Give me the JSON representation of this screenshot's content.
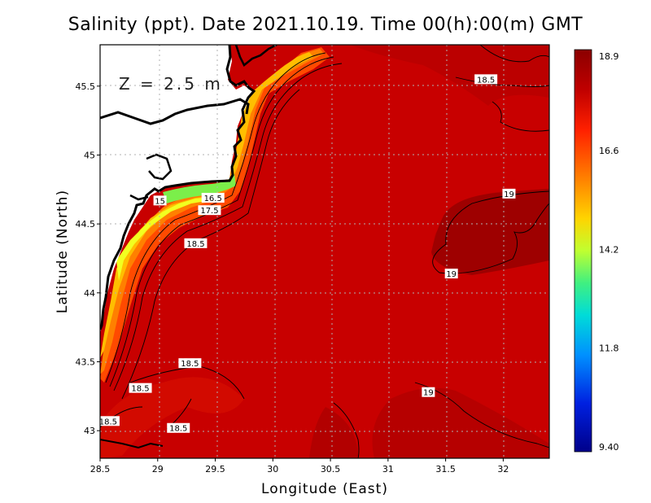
{
  "title": "Salinity (ppt). Date 2021.10.19. Time 00(h):00(m) GMT",
  "depth_label": "Z = 2.5 m",
  "x_axis": {
    "label": "Longitude (East)",
    "range": [
      28.5,
      32.4
    ],
    "ticks": [
      28.5,
      29,
      29.5,
      30,
      30.5,
      31,
      31.5,
      32
    ],
    "tick_labels": [
      "28.5",
      "29",
      "29.5",
      "30",
      "30.5",
      "31",
      "31.5",
      "32"
    ]
  },
  "y_axis": {
    "label": "Latitude (North)",
    "range": [
      42.8,
      45.8
    ],
    "ticks": [
      43,
      43.5,
      44,
      44.5,
      45,
      45.5
    ],
    "tick_labels": [
      "43",
      "43.5",
      "44",
      "44.5",
      "45",
      "45.5"
    ]
  },
  "colorbar": {
    "min": 9.4,
    "max": 18.9,
    "labels": [
      "18.9",
      "16.6",
      "14.2",
      "11.8",
      "9.40"
    ],
    "label_values": [
      18.9,
      16.6,
      14.2,
      11.8,
      9.4
    ],
    "colors": [
      "#8b0000",
      "#e60000",
      "#ff6a00",
      "#ffd800",
      "#b8ff3a",
      "#3cf07a",
      "#00d6e6",
      "#0070ff",
      "#0010d0",
      "#00008a"
    ]
  },
  "contour_labels": [
    {
      "text": "18.5",
      "lon": 31.85,
      "lat": 45.55
    },
    {
      "text": "19",
      "lon": 32.05,
      "lat": 44.72
    },
    {
      "text": "19",
      "lon": 31.55,
      "lat": 44.14
    },
    {
      "text": "19",
      "lon": 31.35,
      "lat": 43.28
    },
    {
      "text": "15",
      "lon": 29.02,
      "lat": 44.67
    },
    {
      "text": "16.5",
      "lon": 29.48,
      "lat": 44.69
    },
    {
      "text": "17.5",
      "lon": 29.45,
      "lat": 44.6
    },
    {
      "text": "18.5",
      "lon": 29.33,
      "lat": 44.36
    },
    {
      "text": "18.5",
      "lon": 29.28,
      "lat": 43.49
    },
    {
      "text": "18.5",
      "lon": 28.85,
      "lat": 43.31
    },
    {
      "text": "18.5",
      "lon": 28.57,
      "lat": 43.07
    },
    {
      "text": "18.5",
      "lon": 29.18,
      "lat": 43.02
    }
  ]
}
